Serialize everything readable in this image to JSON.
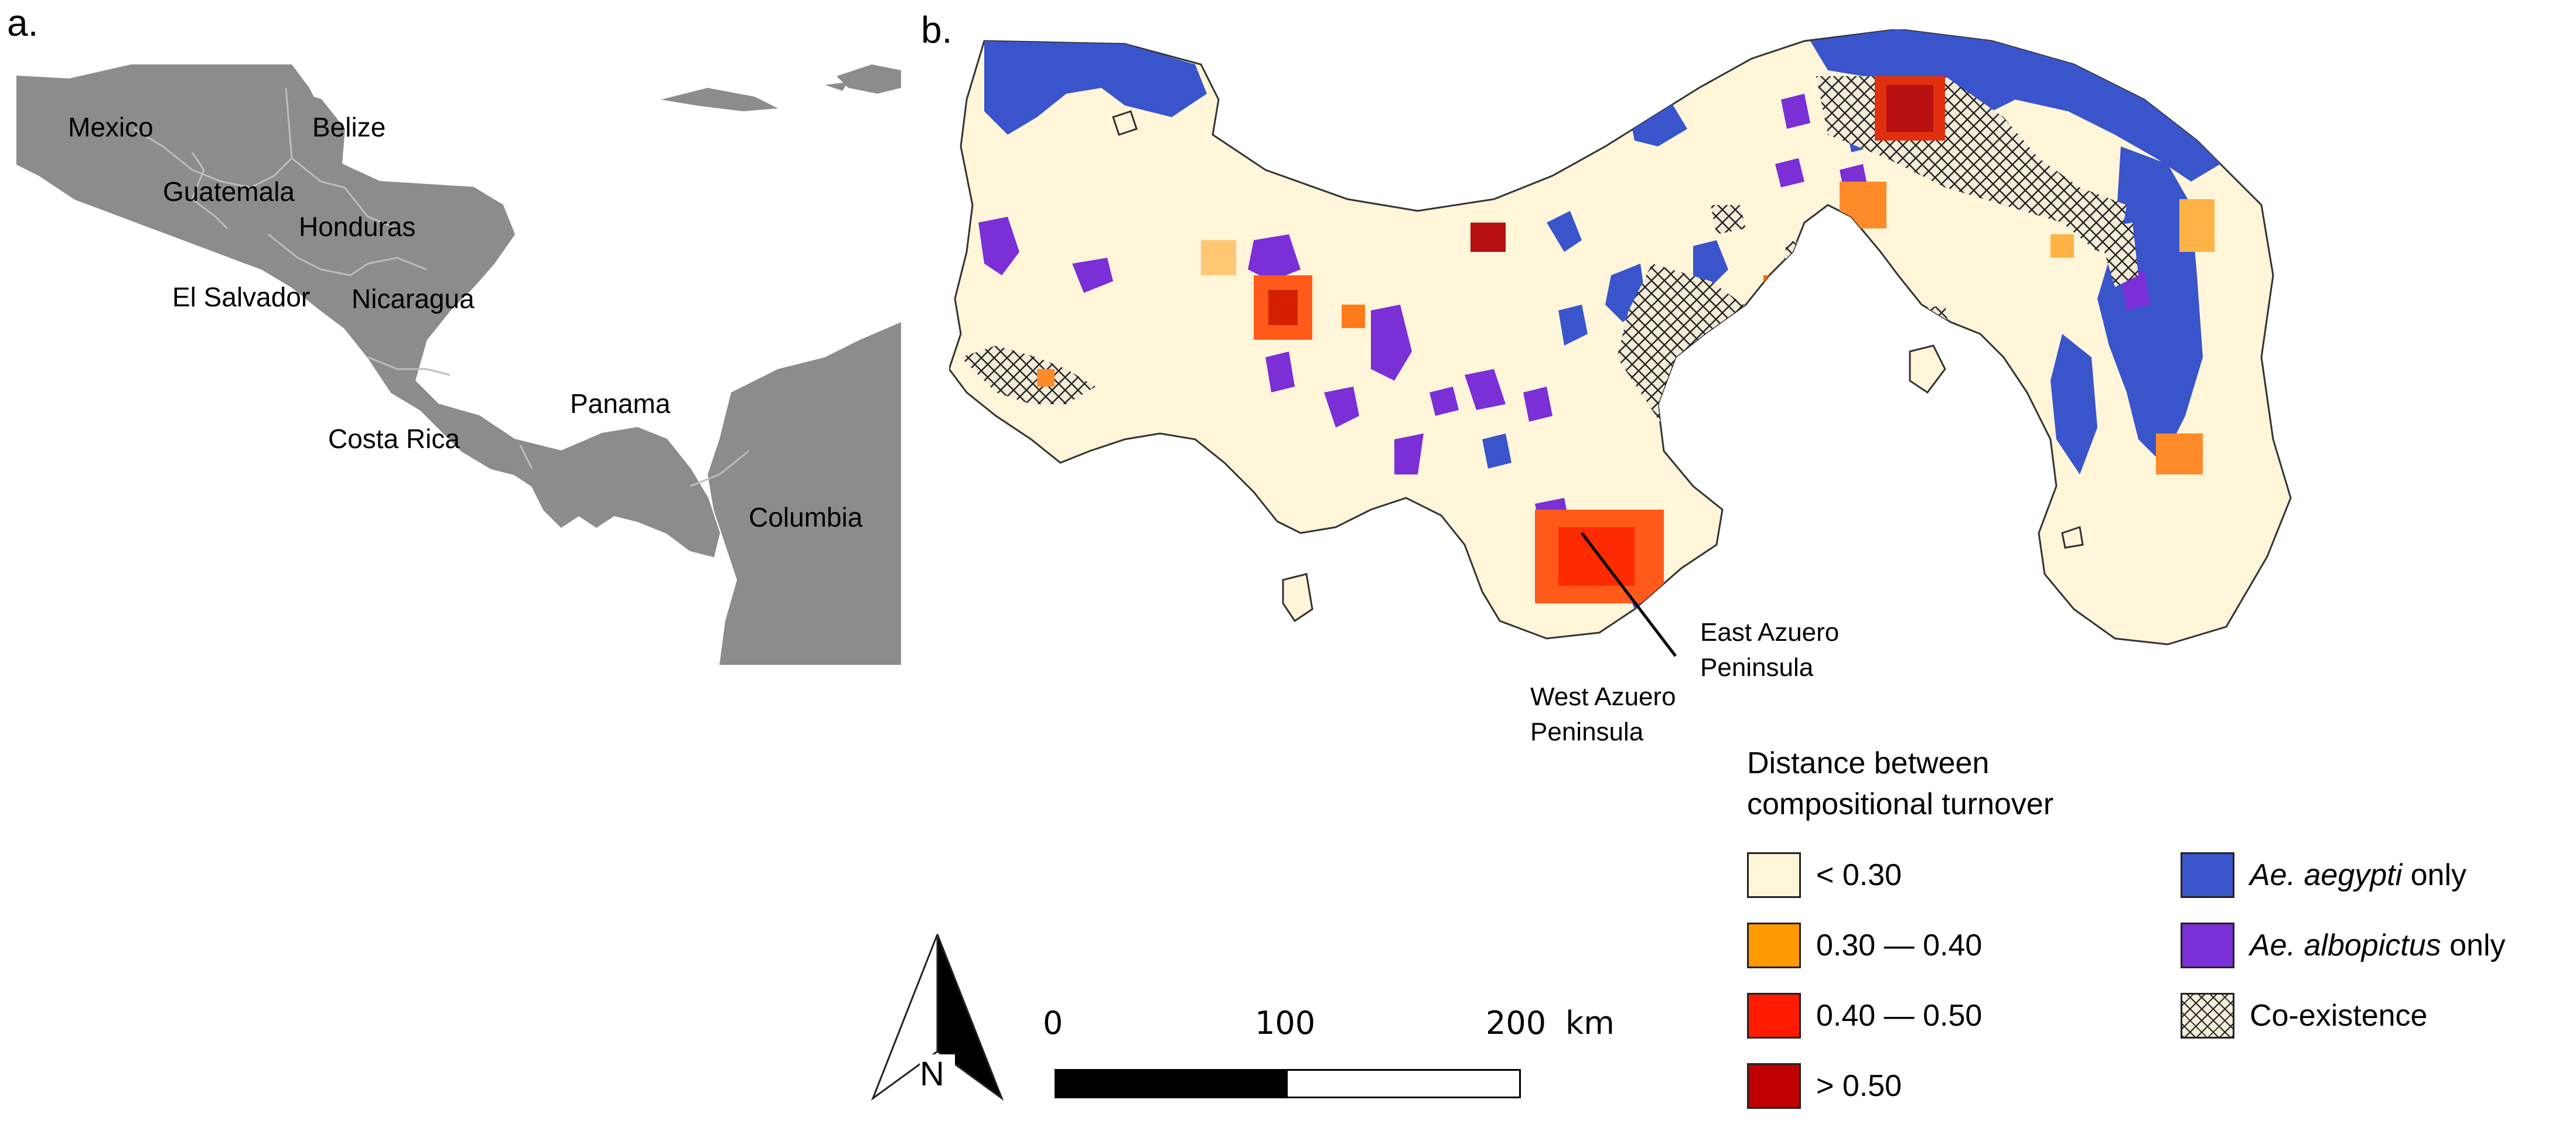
{
  "panel_a": {
    "label": "a.",
    "countries": [
      {
        "id": "mexico",
        "name": "Mexico"
      },
      {
        "id": "belize",
        "name": "Belize"
      },
      {
        "id": "guatemala",
        "name": "Guatemala"
      },
      {
        "id": "honduras",
        "name": "Honduras"
      },
      {
        "id": "el-salvador",
        "name": "El Salvador"
      },
      {
        "id": "nicaragua",
        "name": "Nicaragua"
      },
      {
        "id": "costa-rica",
        "name": "Costa Rica"
      },
      {
        "id": "panama",
        "name": "Panama"
      },
      {
        "id": "columbia",
        "name": "Columbia"
      }
    ],
    "land_color": "#8c8c8c",
    "border_color": "#bdbdbd"
  },
  "panel_b": {
    "label": "b.",
    "annotations": {
      "east": [
        "East Azuero",
        "Peninsula"
      ],
      "west": [
        "West Azuero",
        "Peninsula"
      ]
    },
    "legend": {
      "title_line1": "Distance between",
      "title_line2": "compositional turnover",
      "turnover_classes": [
        {
          "label": "< 0.30",
          "color": "#fff5d9"
        },
        {
          "label": "0.30 — 0.40",
          "color": "#ff9a00"
        },
        {
          "label": "0.40 — 0.50",
          "color": "#ff1a00"
        },
        {
          "label": "> 0.50",
          "color": "#c00000"
        }
      ],
      "species": [
        {
          "italic": "Ae. aegypti",
          "rest": " only",
          "color": "#3a54cc"
        },
        {
          "italic": "Ae. albopictus",
          "rest": " only",
          "color": "#7b2fd6"
        },
        {
          "italic": "",
          "rest": "Co-existence",
          "color": "pattern"
        }
      ]
    },
    "north_arrow": {
      "label": "N"
    },
    "scale_bar": {
      "ticks": [
        "0",
        "100",
        "200"
      ],
      "unit": "km"
    }
  }
}
